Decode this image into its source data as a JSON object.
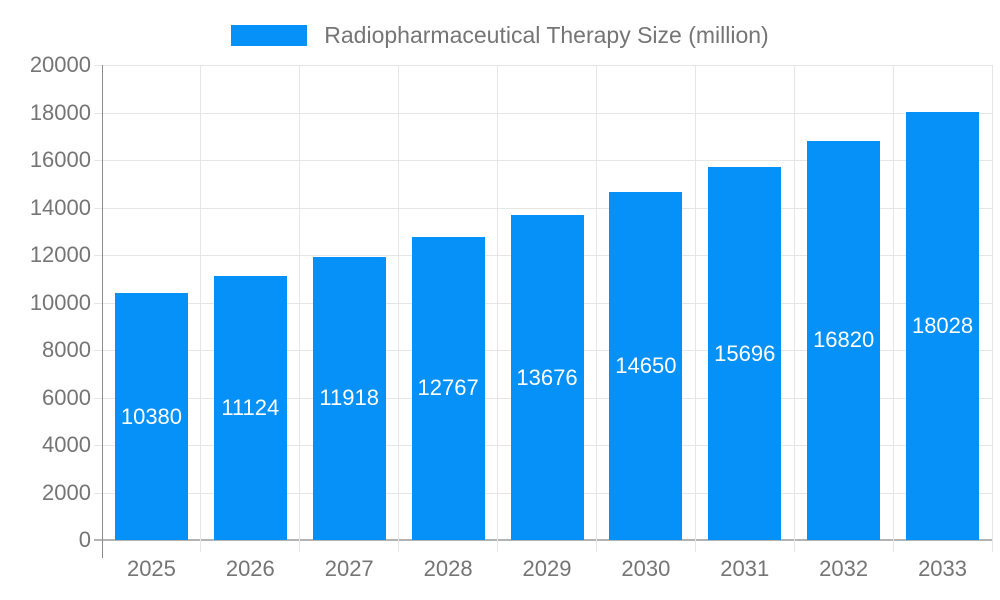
{
  "legend": {
    "label": "Radiopharmaceutical Therapy Size (million)",
    "swatch_color": "#0591f8"
  },
  "chart_data": {
    "type": "bar",
    "title": "Radiopharmaceutical Therapy Size (million)",
    "categories": [
      "2025",
      "2026",
      "2027",
      "2028",
      "2029",
      "2030",
      "2031",
      "2032",
      "2033"
    ],
    "series": [
      {
        "name": "Radiopharmaceutical Therapy Size (million)",
        "values": [
          10380,
          11124,
          11918,
          12767,
          13676,
          14650,
          15696,
          16820,
          18028
        ]
      }
    ],
    "xlabel": "",
    "ylabel": "",
    "ylim": [
      0,
      20000
    ],
    "ytick_step": 2000,
    "yticks": [
      0,
      2000,
      4000,
      6000,
      8000,
      10000,
      12000,
      14000,
      16000,
      18000,
      20000
    ],
    "grid": true,
    "legend_position": "top-center",
    "value_labels": "inside-center",
    "colors": {
      "bar": "#0591f8",
      "value_label_text": "#ffffff",
      "axis_text": "#757575",
      "gridline": "#e6e6e6",
      "x_axis_line": "#b3b3b3",
      "y_axis_line": "#8c8c8c"
    }
  }
}
